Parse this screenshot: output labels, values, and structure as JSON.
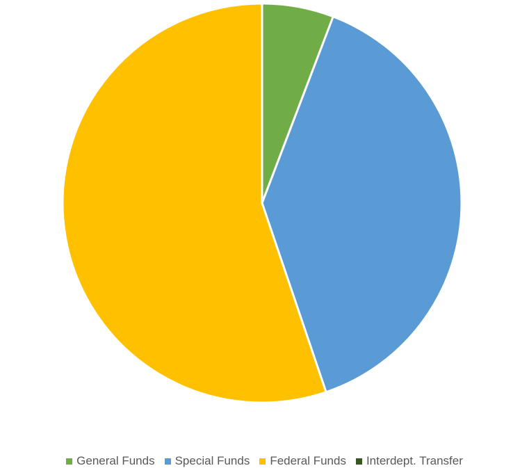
{
  "chart_data": {
    "type": "pie",
    "title": "",
    "categories": [
      "General Funds",
      "Special Funds",
      "Federal Funds",
      "Interdept. Transfer"
    ],
    "values": [
      5.8,
      39.0,
      55.2,
      0.0
    ],
    "colors": [
      "#70AD47",
      "#5B9BD5",
      "#FFC000",
      "#375623"
    ],
    "legend_position": "bottom",
    "start_angle_deg": 0,
    "direction": "clockwise"
  }
}
